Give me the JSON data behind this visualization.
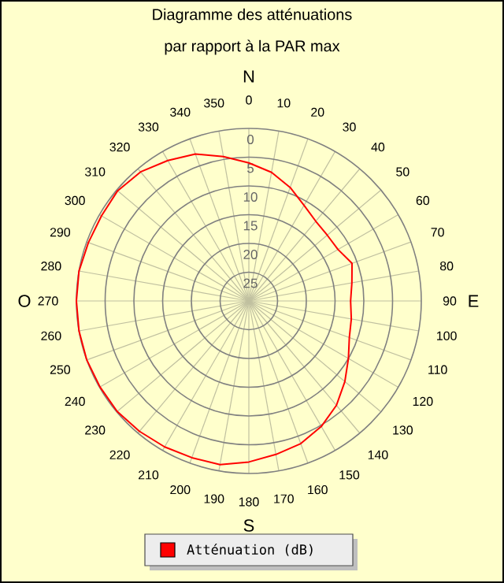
{
  "chart_data": {
    "type": "radar",
    "title": "Diagramme des atténuations",
    "subtitle": "par rapport à la PAR max",
    "annotations": [
      "N",
      "E",
      "S",
      "O"
    ],
    "categories": [
      "0",
      "10",
      "20",
      "30",
      "40",
      "50",
      "60",
      "70",
      "80",
      "90",
      "100",
      "110",
      "120",
      "130",
      "140",
      "150",
      "160",
      "170",
      "180",
      "190",
      "200",
      "210",
      "220",
      "230",
      "240",
      "250",
      "260",
      "270",
      "280",
      "290",
      "300",
      "310",
      "320",
      "330",
      "340",
      "350"
    ],
    "series": [
      {
        "name": "Atténuation (dB)",
        "color": "#ff0000",
        "values": [
          6.0,
          7.3,
          9.0,
          10.8,
          11.9,
          12.2,
          12.1,
          10.9,
          11.8,
          12.3,
          11.9,
          11.4,
          10.0,
          8.2,
          6.3,
          4.8,
          3.6,
          2.9,
          2.0,
          1.1,
          1.0,
          0.7,
          0.4,
          0.1,
          0.1,
          0,
          0,
          0,
          0,
          0.3,
          0.4,
          0.2,
          0.7,
          1.8,
          2.8,
          4.5
        ]
      }
    ],
    "ylim": [
      30,
      0
    ],
    "yticks": [
      0,
      5,
      10,
      15,
      20,
      25
    ],
    "grid": true,
    "legend": "bottom"
  }
}
